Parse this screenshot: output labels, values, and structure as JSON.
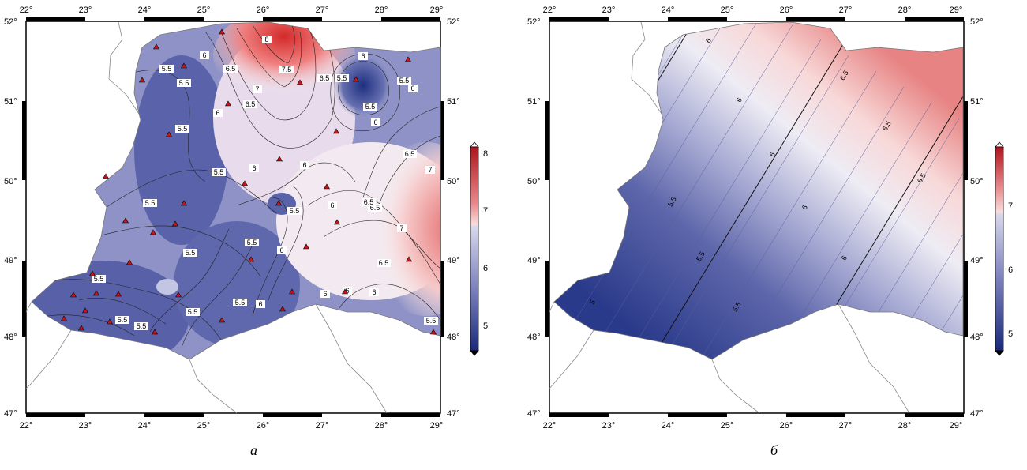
{
  "panels": [
    {
      "caption": "а",
      "x_ticks": [
        "22°",
        "23°",
        "24°",
        "25°",
        "26°",
        "27°",
        "28°",
        "29°"
      ],
      "y_ticks": [
        "52°",
        "51°",
        "50°",
        "49°",
        "48°",
        "47°"
      ],
      "colorbar": {
        "ticks": [
          "8",
          "7",
          "6",
          "5"
        ],
        "range": [
          4.8,
          8.1
        ]
      },
      "contour_labels": [
        "5.5",
        "5.5",
        "6",
        "6.5",
        "7",
        "7.5",
        "8",
        "6.5",
        "5.5",
        "6",
        "5.5",
        "6",
        "6",
        "6.5",
        "7",
        "5.5",
        "6",
        "5.5",
        "5.5",
        "5.5",
        "5.5",
        "6",
        "6",
        "6.5",
        "7",
        "6.5",
        "5.5",
        "6",
        "6",
        "6.5",
        "6",
        "5.5",
        "5.5",
        "5.5",
        "5.5",
        "5.5",
        "5.5",
        "6",
        "6",
        "5.5",
        "6",
        "6.5"
      ],
      "stations": 38
    },
    {
      "caption": "б",
      "x_ticks": [
        "22°",
        "23°",
        "24°",
        "25°",
        "26°",
        "27°",
        "28°",
        "29°"
      ],
      "y_ticks": [
        "52°",
        "51°",
        "50°",
        "49°",
        "48°",
        "47°"
      ],
      "colorbar": {
        "ticks": [
          "7",
          "6",
          "5"
        ],
        "range": [
          4.8,
          7.4
        ]
      },
      "contour_labels": [
        "6",
        "6",
        "6",
        "6",
        "6",
        "6.5",
        "6.5",
        "6.5",
        "5.5",
        "5.5",
        "5.5",
        "5"
      ]
    }
  ],
  "colors": {
    "blue_dark": "#2b3d8c",
    "blue_mid": "#8d90c4",
    "white": "#f4f2f7",
    "red_light": "#f1b9b9",
    "red_dark": "#c4181e",
    "station": "#c8141a",
    "frame": "#000000"
  }
}
